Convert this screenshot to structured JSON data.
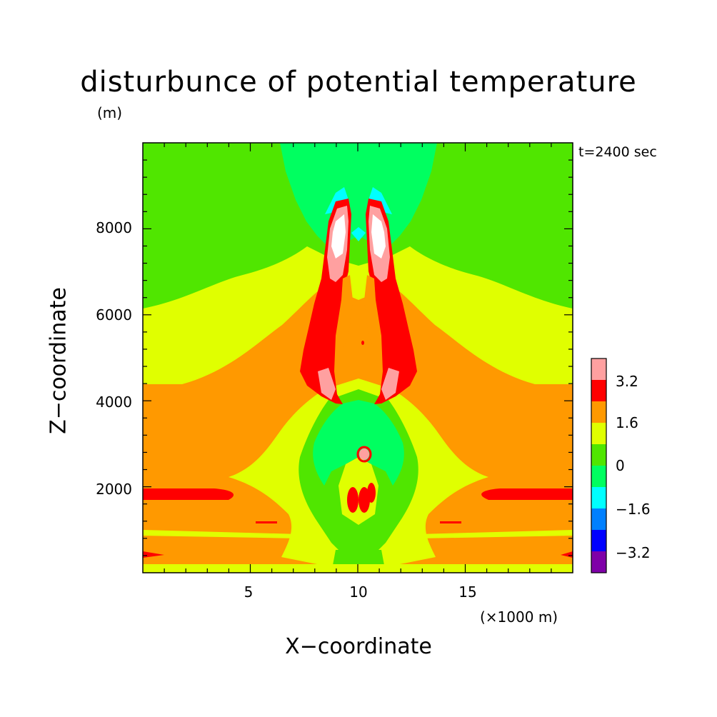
{
  "chart": {
    "title": "disturbunce of potential temperature",
    "z_unit": "(m)",
    "time_label": "t=2400 sec",
    "xlabel": "X−coordinate",
    "ylabel": "Z−coordinate",
    "x_multiplier": "(×1000 m)"
  },
  "chart_data": {
    "type": "heatmap",
    "title": "disturbunce of potential temperature",
    "xlabel": "X−coordinate",
    "ylabel": "Z−coordinate",
    "x_unit": "×1000 m",
    "y_unit": "m",
    "annotation": "t=2400 sec",
    "xlim": [
      0,
      20
    ],
    "ylim": [
      0,
      10000
    ],
    "x_ticks": [
      5,
      10,
      15
    ],
    "y_ticks": [
      2000,
      4000,
      6000,
      8000
    ],
    "y_tick_labels": [
      "2000",
      "4000",
      "6000",
      "8000"
    ],
    "x_tick_labels": [
      "5",
      "10",
      "15"
    ],
    "grid": false,
    "colorbar": {
      "levels": [
        -4.0,
        -3.2,
        -2.4,
        -1.6,
        -0.8,
        0,
        0.8,
        1.6,
        2.4,
        3.2,
        4.0
      ],
      "labels": [
        "3.2",
        "1.6",
        "0",
        "−1.6",
        "−3.2"
      ],
      "label_values": [
        3.2,
        1.6,
        0,
        -1.6,
        -3.2
      ],
      "colors": [
        "#7f00a8",
        "#0000ff",
        "#0080ff",
        "#00ffff",
        "#00ff60",
        "#50e600",
        "#e0ff00",
        "#ff9900",
        "#ff0000",
        "#ffa0a0"
      ]
    },
    "regions": [
      {
        "level": 0.0,
        "color": "#50e600",
        "desc": "background upper layer (0 to 0.8 K)"
      },
      {
        "level": 0.8,
        "color": "#e0ff00",
        "desc": "middle layer 0.8 to 1.6 K"
      },
      {
        "level": 1.6,
        "color": "#ff9900",
        "desc": "lower layer 1.6 to 2.4 K"
      },
      {
        "level": 2.4,
        "color": "#ff0000",
        "desc": "warm plume 2.4 to 3.2 K"
      },
      {
        "level": 3.2,
        "color": "#ffa0a0",
        "desc": "plume core 3.2 to 4.0 K"
      },
      {
        "level": 4.0,
        "color": "#ffffff",
        "desc": "plume core above 4.0 K"
      },
      {
        "level": -0.8,
        "color": "#00ff60",
        "desc": "cooling above plume -0.8 to 0 K"
      },
      {
        "level": -1.6,
        "color": "#00ffff",
        "desc": "cooling -1.6 to -0.8 K"
      }
    ]
  }
}
